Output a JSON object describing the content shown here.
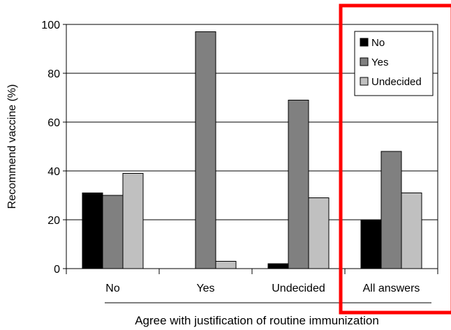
{
  "chart_data": {
    "type": "bar",
    "xlabel": "Agree with justification of routine immunization",
    "ylabel": "Recommend vaccine (%)",
    "categories": [
      "No",
      "Yes",
      "Undecided",
      "All answers"
    ],
    "series": [
      {
        "name": "No",
        "values": [
          31,
          0,
          2,
          20
        ],
        "color": "#000000"
      },
      {
        "name": "Yes",
        "values": [
          30,
          97,
          69,
          48
        ],
        "color": "#808080"
      },
      {
        "name": "Undecided",
        "values": [
          39,
          3,
          29,
          31
        ],
        "color": "#c0c0c0"
      }
    ],
    "ylim": [
      0,
      100
    ],
    "yticks": [
      "0",
      "20",
      "40",
      "60",
      "80",
      "100"
    ],
    "grid": true,
    "legend_position": "top-right",
    "highlight_color": "#ff0000"
  }
}
